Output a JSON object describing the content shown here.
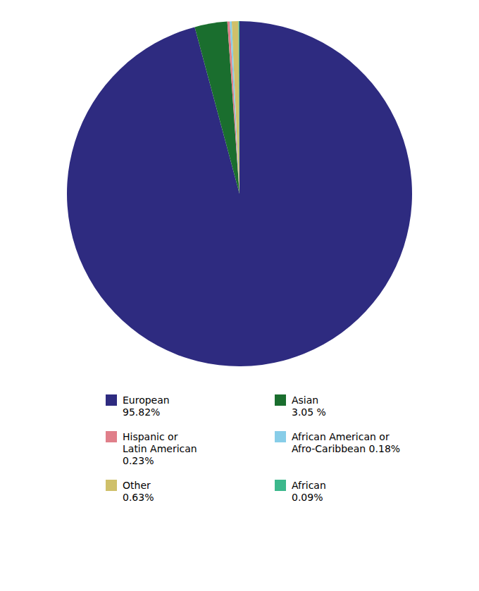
{
  "chart_data": {
    "type": "pie",
    "categories": [
      "European\n95.82%",
      "Asian\n3.05 %",
      "Hispanic or\nLatin American\n0.23%",
      "African American or\nAfro-Caribbean 0.18%",
      "Other\n0.63%",
      "African\n0.09%"
    ],
    "values": [
      95.82,
      3.05,
      0.23,
      0.18,
      0.63,
      0.09
    ],
    "colors": [
      "#2e2b80",
      "#1a6e2e",
      "#e07f8a",
      "#87cde8",
      "#cfc06a",
      "#3cb88c"
    ],
    "legend": "bottom"
  }
}
